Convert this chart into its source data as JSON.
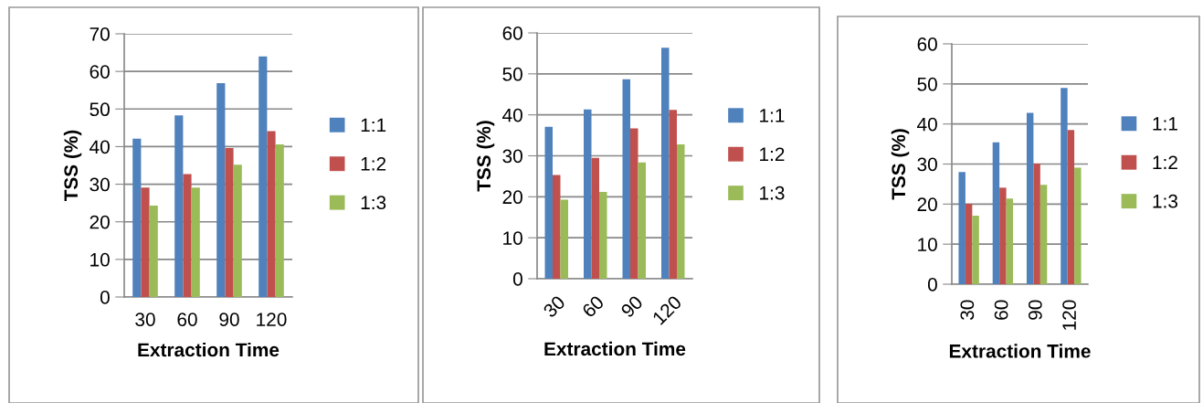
{
  "chart_data": [
    {
      "type": "bar",
      "xlabel": "Extraction Time",
      "ylabel": "TSS (%)",
      "categories": [
        "30",
        "60",
        "90",
        "120"
      ],
      "series": [
        {
          "name": "1:1",
          "color": "#4f81bd",
          "values": [
            42.1,
            48.3,
            56.9,
            64.0
          ]
        },
        {
          "name": "1:2",
          "color": "#c0504d",
          "values": [
            29.1,
            32.7,
            39.6,
            44.1
          ]
        },
        {
          "name": "1:3",
          "color": "#9bbb59",
          "values": [
            24.3,
            29.1,
            35.2,
            40.6
          ]
        }
      ],
      "ylim": [
        0,
        70
      ],
      "yticks": [
        0,
        10,
        20,
        30,
        40,
        50,
        60,
        70
      ],
      "grid": "y",
      "legend": "right"
    },
    {
      "type": "bar",
      "xlabel": "Extraction Time",
      "ylabel": "TSS (%)",
      "categories": [
        "30",
        "60",
        "90",
        "120"
      ],
      "series": [
        {
          "name": "1:1",
          "color": "#4f81bd",
          "values": [
            37.1,
            41.3,
            48.7,
            56.4
          ]
        },
        {
          "name": "1:2",
          "color": "#c0504d",
          "values": [
            25.3,
            29.5,
            36.7,
            41.2
          ]
        },
        {
          "name": "1:3",
          "color": "#9bbb59",
          "values": [
            19.3,
            21.2,
            28.4,
            32.8
          ]
        }
      ],
      "ylim": [
        0,
        60
      ],
      "yticks": [
        0,
        10,
        20,
        30,
        40,
        50,
        60
      ],
      "grid": "y",
      "legend": "right"
    },
    {
      "type": "bar",
      "xlabel": "Extraction Time",
      "ylabel": "TSS (%)",
      "categories": [
        "30",
        "60",
        "90",
        "120"
      ],
      "series": [
        {
          "name": "1:1",
          "color": "#4f81bd",
          "values": [
            28.0,
            35.4,
            42.8,
            49.0
          ]
        },
        {
          "name": "1:2",
          "color": "#c0504d",
          "values": [
            20.1,
            24.1,
            30.1,
            38.5
          ]
        },
        {
          "name": "1:3",
          "color": "#9bbb59",
          "values": [
            17.1,
            21.4,
            24.8,
            29.1
          ]
        }
      ],
      "ylim": [
        0,
        60
      ],
      "yticks": [
        0,
        10,
        20,
        30,
        40,
        50,
        60
      ],
      "grid": "y",
      "legend": "right"
    }
  ]
}
